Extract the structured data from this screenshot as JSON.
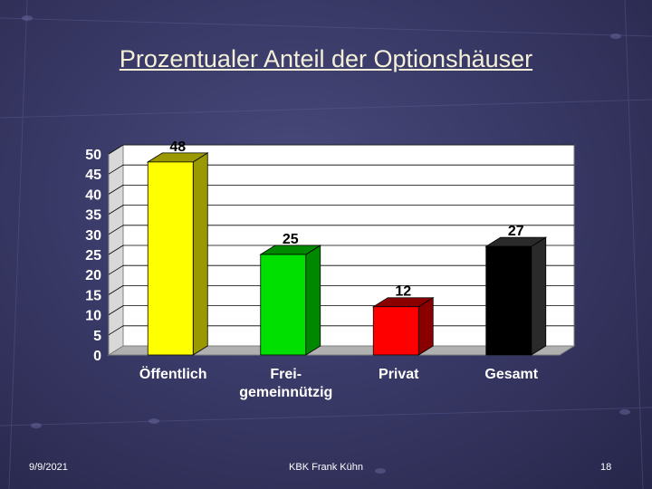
{
  "slide": {
    "title": "Prozentualer Anteil der Optionshäuser",
    "footer_date": "9/9/2021",
    "footer_center": "KBK Frank Kühn",
    "footer_page": "18"
  },
  "chart_data": {
    "type": "bar",
    "categories": [
      [
        "Öffentlich"
      ],
      [
        "Frei-",
        "gemeinnützig"
      ],
      [
        "Privat"
      ],
      [
        "Gesamt"
      ]
    ],
    "values": [
      48,
      25,
      12,
      27
    ],
    "bar_colors": [
      "#ffff00",
      "#00e000",
      "#ff0000",
      "#000000"
    ],
    "bar_side_colors": [
      "#9a9a00",
      "#008800",
      "#8a0000",
      "#2a2a2a"
    ],
    "ylim": [
      0,
      50
    ],
    "yticks": [
      0,
      5,
      10,
      15,
      20,
      25,
      30,
      35,
      40,
      45,
      50
    ],
    "grid": true,
    "three_d": true
  }
}
